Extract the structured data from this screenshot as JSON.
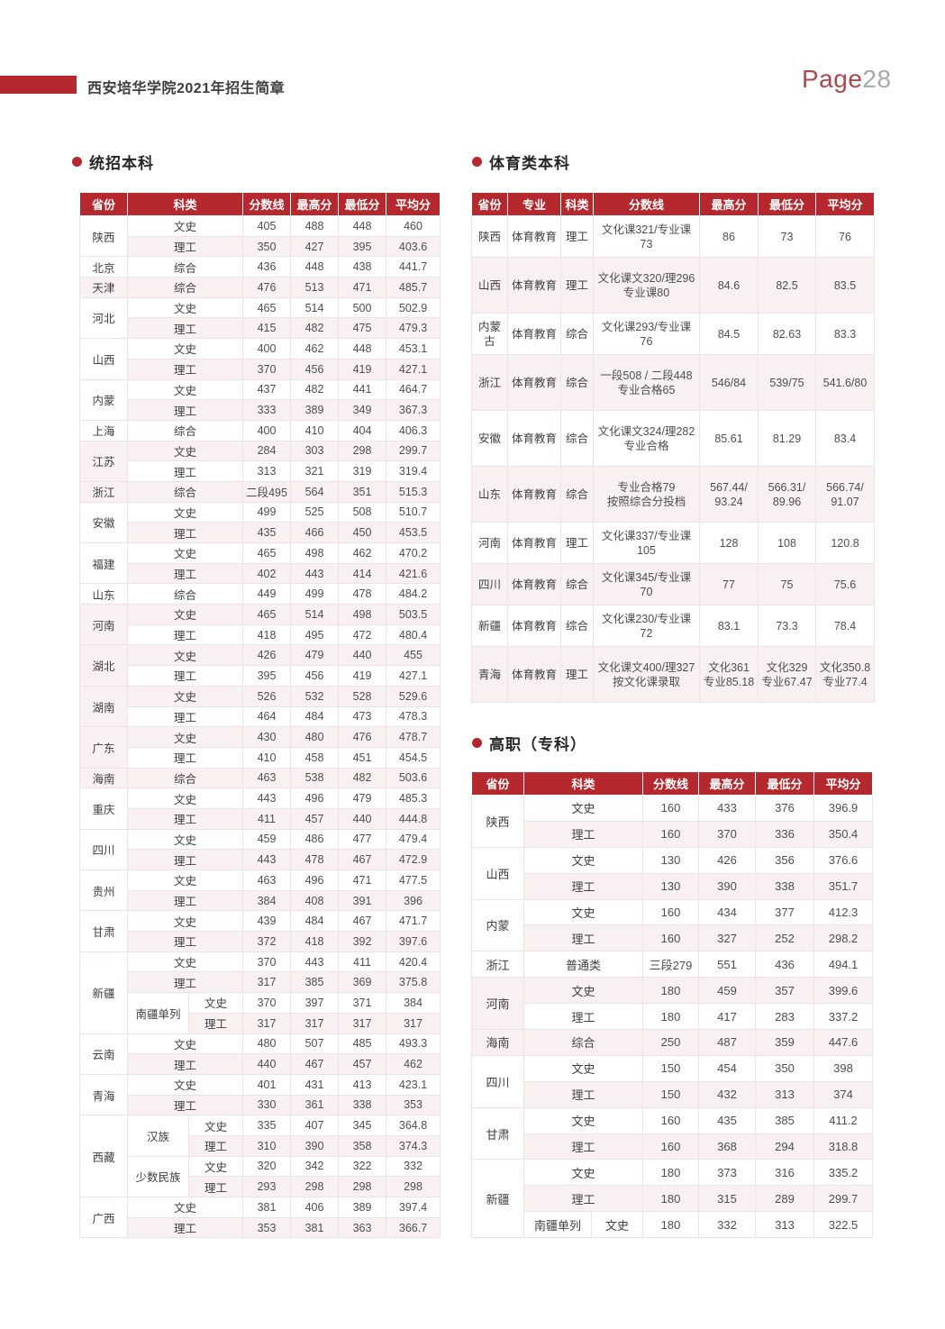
{
  "header": {
    "title": "西安培华学院2021年招生简章",
    "page_label": "Page",
    "page_number": "28"
  },
  "colors": {
    "accent_red": "#b4282e",
    "stripe_pink": "#f9f1f1",
    "page_number_gray": "#a9a9a9"
  },
  "sections": {
    "benke": {
      "title": "统招本科"
    },
    "tiyu": {
      "title": "体育类本科"
    },
    "gaozhi": {
      "title": "高职（专科）"
    }
  },
  "tables": {
    "benke": {
      "columns": [
        "省份",
        "科类",
        "分数线",
        "最高分",
        "最低分",
        "平均分"
      ],
      "groups": [
        {
          "province": "陕西",
          "rows": [
            {
              "type": "文史",
              "values": [
                "405",
                "488",
                "448",
                "460"
              ]
            },
            {
              "type": "理工",
              "values": [
                "350",
                "427",
                "395",
                "403.6"
              ]
            }
          ]
        },
        {
          "province": "北京",
          "rows": [
            {
              "type": "综合",
              "values": [
                "436",
                "448",
                "438",
                "441.7"
              ]
            }
          ]
        },
        {
          "province": "天津",
          "rows": [
            {
              "type": "综合",
              "values": [
                "476",
                "513",
                "471",
                "485.7"
              ]
            }
          ]
        },
        {
          "province": "河北",
          "rows": [
            {
              "type": "文史",
              "values": [
                "465",
                "514",
                "500",
                "502.9"
              ]
            },
            {
              "type": "理工",
              "values": [
                "415",
                "482",
                "475",
                "479.3"
              ]
            }
          ]
        },
        {
          "province": "山西",
          "rows": [
            {
              "type": "文史",
              "values": [
                "400",
                "462",
                "448",
                "453.1"
              ]
            },
            {
              "type": "理工",
              "values": [
                "370",
                "456",
                "419",
                "427.1"
              ]
            }
          ]
        },
        {
          "province": "内蒙",
          "rows": [
            {
              "type": "文史",
              "values": [
                "437",
                "482",
                "441",
                "464.7"
              ]
            },
            {
              "type": "理工",
              "values": [
                "333",
                "389",
                "349",
                "367.3"
              ]
            }
          ]
        },
        {
          "province": "上海",
          "rows": [
            {
              "type": "综合",
              "values": [
                "400",
                "410",
                "404",
                "406.3"
              ]
            }
          ]
        },
        {
          "province": "江苏",
          "rows": [
            {
              "type": "文史",
              "values": [
                "284",
                "303",
                "298",
                "299.7"
              ]
            },
            {
              "type": "理工",
              "values": [
                "313",
                "321",
                "319",
                "319.4"
              ]
            }
          ]
        },
        {
          "province": "浙江",
          "rows": [
            {
              "type": "综合",
              "values": [
                "二段495",
                "564",
                "351",
                "515.3"
              ]
            }
          ]
        },
        {
          "province": "安徽",
          "rows": [
            {
              "type": "文史",
              "values": [
                "499",
                "525",
                "508",
                "510.7"
              ]
            },
            {
              "type": "理工",
              "values": [
                "435",
                "466",
                "450",
                "453.5"
              ]
            }
          ]
        },
        {
          "province": "福建",
          "rows": [
            {
              "type": "文史",
              "values": [
                "465",
                "498",
                "462",
                "470.2"
              ]
            },
            {
              "type": "理工",
              "values": [
                "402",
                "443",
                "414",
                "421.6"
              ]
            }
          ]
        },
        {
          "province": "山东",
          "rows": [
            {
              "type": "综合",
              "values": [
                "449",
                "499",
                "478",
                "484.2"
              ]
            }
          ]
        },
        {
          "province": "河南",
          "rows": [
            {
              "type": "文史",
              "values": [
                "465",
                "514",
                "498",
                "503.5"
              ]
            },
            {
              "type": "理工",
              "values": [
                "418",
                "495",
                "472",
                "480.4"
              ]
            }
          ]
        },
        {
          "province": "湖北",
          "rows": [
            {
              "type": "文史",
              "values": [
                "426",
                "479",
                "440",
                "455"
              ]
            },
            {
              "type": "理工",
              "values": [
                "395",
                "456",
                "419",
                "427.1"
              ]
            }
          ]
        },
        {
          "province": "湖南",
          "rows": [
            {
              "type": "文史",
              "values": [
                "526",
                "532",
                "528",
                "529.6"
              ]
            },
            {
              "type": "理工",
              "values": [
                "464",
                "484",
                "473",
                "478.3"
              ]
            }
          ]
        },
        {
          "province": "广东",
          "rows": [
            {
              "type": "文史",
              "values": [
                "430",
                "480",
                "476",
                "478.7"
              ]
            },
            {
              "type": "理工",
              "values": [
                "410",
                "458",
                "451",
                "454.5"
              ]
            }
          ]
        },
        {
          "province": "海南",
          "rows": [
            {
              "type": "综合",
              "values": [
                "463",
                "538",
                "482",
                "503.6"
              ]
            }
          ]
        },
        {
          "province": "重庆",
          "rows": [
            {
              "type": "文史",
              "values": [
                "443",
                "496",
                "479",
                "485.3"
              ]
            },
            {
              "type": "理工",
              "values": [
                "411",
                "457",
                "440",
                "444.8"
              ]
            }
          ]
        },
        {
          "province": "四川",
          "rows": [
            {
              "type": "文史",
              "values": [
                "459",
                "486",
                "477",
                "479.4"
              ]
            },
            {
              "type": "理工",
              "values": [
                "443",
                "478",
                "467",
                "472.9"
              ]
            }
          ]
        },
        {
          "province": "贵州",
          "rows": [
            {
              "type": "文史",
              "values": [
                "463",
                "496",
                "471",
                "477.5"
              ]
            },
            {
              "type": "理工",
              "values": [
                "384",
                "408",
                "391",
                "396"
              ]
            }
          ]
        },
        {
          "province": "甘肃",
          "rows": [
            {
              "type": "文史",
              "values": [
                "439",
                "484",
                "467",
                "471.7"
              ]
            },
            {
              "type": "理工",
              "values": [
                "372",
                "418",
                "392",
                "397.6"
              ]
            }
          ]
        },
        {
          "province": "新疆",
          "rows": [
            {
              "type": "文史",
              "values": [
                "370",
                "443",
                "411",
                "420.4"
              ]
            },
            {
              "type": "理工",
              "values": [
                "317",
                "385",
                "369",
                "375.8"
              ]
            },
            {
              "sub": "南疆单列",
              "type": "文史",
              "values": [
                "370",
                "397",
                "371",
                "384"
              ]
            },
            {
              "sub": "南疆单列",
              "type": "理工",
              "values": [
                "317",
                "317",
                "317",
                "317"
              ]
            }
          ]
        },
        {
          "province": "云南",
          "rows": [
            {
              "type": "文史",
              "values": [
                "480",
                "507",
                "485",
                "493.3"
              ]
            },
            {
              "type": "理工",
              "values": [
                "440",
                "467",
                "457",
                "462"
              ]
            }
          ]
        },
        {
          "province": "青海",
          "rows": [
            {
              "type": "文史",
              "values": [
                "401",
                "431",
                "413",
                "423.1"
              ]
            },
            {
              "type": "理工",
              "values": [
                "330",
                "361",
                "338",
                "353"
              ]
            }
          ]
        },
        {
          "province": "西藏",
          "rows": [
            {
              "sub": "汉族",
              "type": "文史",
              "values": [
                "335",
                "407",
                "345",
                "364.8"
              ]
            },
            {
              "sub": "汉族",
              "type": "理工",
              "values": [
                "310",
                "390",
                "358",
                "374.3"
              ]
            },
            {
              "sub": "少数民族",
              "type": "文史",
              "values": [
                "320",
                "342",
                "322",
                "332"
              ]
            },
            {
              "sub": "少数民族",
              "type": "理工",
              "values": [
                "293",
                "298",
                "298",
                "298"
              ]
            }
          ]
        },
        {
          "province": "广西",
          "rows": [
            {
              "type": "文史",
              "values": [
                "381",
                "406",
                "389",
                "397.4"
              ]
            },
            {
              "type": "理工",
              "values": [
                "353",
                "381",
                "363",
                "366.7"
              ]
            }
          ]
        }
      ]
    },
    "tiyu": {
      "columns": [
        "省份",
        "专业",
        "科类",
        "分数线",
        "最高分",
        "最低分",
        "平均分"
      ],
      "rows": [
        {
          "province": "陕西",
          "major": "体育教育",
          "type": "理工",
          "line": "文化课321/专业课73",
          "max": "86",
          "min": "73",
          "avg": "76"
        },
        {
          "province": "山西",
          "major": "体育教育",
          "type": "理工",
          "line": "文化课文320/理296\n专业课80",
          "max": "84.6",
          "min": "82.5",
          "avg": "83.5"
        },
        {
          "province": "内蒙古",
          "major": "体育教育",
          "type": "综合",
          "line": "文化课293/专业课76",
          "max": "84.5",
          "min": "82.63",
          "avg": "83.3"
        },
        {
          "province": "浙江",
          "major": "体育教育",
          "type": "综合",
          "line": "一段508 / 二段448\n专业合格65",
          "max": "546/84",
          "min": "539/75",
          "avg": "541.6/80"
        },
        {
          "province": "安徽",
          "major": "体育教育",
          "type": "综合",
          "line": "文化课文324/理282\n专业合格",
          "max": "85.61",
          "min": "81.29",
          "avg": "83.4"
        },
        {
          "province": "山东",
          "major": "体育教育",
          "type": "综合",
          "line": "专业合格79\n按照综合分投档",
          "max": "567.44/\n93.24",
          "min": "566.31/\n89.96",
          "avg": "566.74/\n91.07"
        },
        {
          "province": "河南",
          "major": "体育教育",
          "type": "理工",
          "line": "文化课337/专业课105",
          "max": "128",
          "min": "108",
          "avg": "120.8"
        },
        {
          "province": "四川",
          "major": "体育教育",
          "type": "综合",
          "line": "文化课345/专业课70",
          "max": "77",
          "min": "75",
          "avg": "75.6"
        },
        {
          "province": "新疆",
          "major": "体育教育",
          "type": "综合",
          "line": "文化课230/专业课72",
          "max": "83.1",
          "min": "73.3",
          "avg": "78.4"
        },
        {
          "province": "青海",
          "major": "体育教育",
          "type": "理工",
          "line": "文化课文400/理327\n按文化课录取",
          "max": "文化361\n专业85.18",
          "min": "文化329\n专业67.47",
          "avg": "文化350.8\n专业77.4"
        }
      ]
    },
    "gaozhi": {
      "columns": [
        "省份",
        "科类",
        "分数线",
        "最高分",
        "最低分",
        "平均分"
      ],
      "groups": [
        {
          "province": "陕西",
          "rows": [
            {
              "type": "文史",
              "values": [
                "160",
                "433",
                "376",
                "396.9"
              ]
            },
            {
              "type": "理工",
              "values": [
                "160",
                "370",
                "336",
                "350.4"
              ]
            }
          ]
        },
        {
          "province": "山西",
          "rows": [
            {
              "type": "文史",
              "values": [
                "130",
                "426",
                "356",
                "376.6"
              ]
            },
            {
              "type": "理工",
              "values": [
                "130",
                "390",
                "338",
                "351.7"
              ]
            }
          ]
        },
        {
          "province": "内蒙",
          "rows": [
            {
              "type": "文史",
              "values": [
                "160",
                "434",
                "377",
                "412.3"
              ]
            },
            {
              "type": "理工",
              "values": [
                "160",
                "327",
                "252",
                "298.2"
              ]
            }
          ]
        },
        {
          "province": "浙江",
          "rows": [
            {
              "type": "普通类",
              "values": [
                "三段279",
                "551",
                "436",
                "494.1"
              ]
            }
          ]
        },
        {
          "province": "河南",
          "rows": [
            {
              "type": "文史",
              "values": [
                "180",
                "459",
                "357",
                "399.6"
              ]
            },
            {
              "type": "理工",
              "values": [
                "180",
                "417",
                "283",
                "337.2"
              ]
            }
          ]
        },
        {
          "province": "海南",
          "rows": [
            {
              "type": "综合",
              "values": [
                "250",
                "487",
                "359",
                "447.6"
              ]
            }
          ]
        },
        {
          "province": "四川",
          "rows": [
            {
              "type": "文史",
              "values": [
                "150",
                "454",
                "350",
                "398"
              ]
            },
            {
              "type": "理工",
              "values": [
                "150",
                "432",
                "313",
                "374"
              ]
            }
          ]
        },
        {
          "province": "甘肃",
          "rows": [
            {
              "type": "文史",
              "values": [
                "160",
                "435",
                "385",
                "411.2"
              ]
            },
            {
              "type": "理工",
              "values": [
                "160",
                "368",
                "294",
                "318.8"
              ]
            }
          ]
        },
        {
          "province": "新疆",
          "rows": [
            {
              "type": "文史",
              "values": [
                "180",
                "373",
                "316",
                "335.2"
              ]
            },
            {
              "type": "理工",
              "values": [
                "180",
                "315",
                "289",
                "299.7"
              ]
            },
            {
              "sub": "南疆单列",
              "type": "文史",
              "values": [
                "180",
                "332",
                "313",
                "322.5"
              ]
            }
          ]
        }
      ]
    }
  }
}
